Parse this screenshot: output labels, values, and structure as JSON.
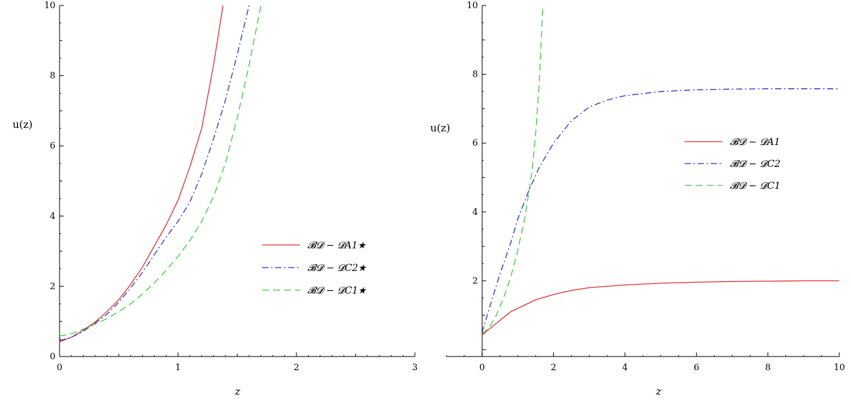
{
  "chart_data": [
    {
      "type": "line",
      "xlabel": "z",
      "ylabel": "u(z)",
      "xlim": [
        0,
        3
      ],
      "ylim": [
        0,
        10
      ],
      "xticks": [
        "0",
        "1",
        "2",
        "3"
      ],
      "yticks": [
        "0",
        "2",
        "4",
        "6",
        "8",
        "10"
      ],
      "legend_position": "lower-right",
      "grid": false,
      "series": [
        {
          "name": "𝓑𝓓 − 𝓓A1★",
          "color": "#e03030",
          "dash": "solid",
          "x": [
            0,
            0.1,
            0.2,
            0.3,
            0.4,
            0.5,
            0.6,
            0.7,
            0.8,
            0.9,
            1.0,
            1.1,
            1.2,
            1.3,
            1.38
          ],
          "y": [
            0.42,
            0.55,
            0.75,
            0.98,
            1.28,
            1.62,
            2.05,
            2.55,
            3.15,
            3.75,
            4.45,
            5.4,
            6.5,
            8.3,
            10.0
          ]
        },
        {
          "name": "𝓑𝓓 − 𝓓C2★",
          "color": "#3030c8",
          "dash": "dashdot",
          "x": [
            0,
            0.1,
            0.2,
            0.3,
            0.4,
            0.5,
            0.6,
            0.7,
            0.8,
            0.9,
            1.0,
            1.1,
            1.2,
            1.3,
            1.4,
            1.5,
            1.6
          ],
          "y": [
            0.45,
            0.55,
            0.72,
            0.95,
            1.2,
            1.55,
            1.95,
            2.4,
            2.9,
            3.4,
            3.85,
            4.4,
            5.2,
            6.2,
            7.3,
            8.6,
            10.0
          ]
        },
        {
          "name": "𝓑𝓓 − 𝓓C1★",
          "color": "#40c840",
          "dash": "dash",
          "x": [
            0,
            0.1,
            0.2,
            0.3,
            0.4,
            0.5,
            0.6,
            0.7,
            0.8,
            0.9,
            1.0,
            1.1,
            1.2,
            1.3,
            1.4,
            1.5,
            1.6,
            1.7
          ],
          "y": [
            0.58,
            0.65,
            0.78,
            0.92,
            1.08,
            1.28,
            1.5,
            1.78,
            2.1,
            2.45,
            2.85,
            3.3,
            3.85,
            4.55,
            5.5,
            6.8,
            8.3,
            10.0
          ]
        }
      ]
    },
    {
      "type": "line",
      "xlabel": "z",
      "ylabel": "u(z)",
      "xlim": [
        -1,
        10
      ],
      "ylim": [
        -0.2,
        10
      ],
      "xticks": [
        "0",
        "2",
        "4",
        "6",
        "8",
        "10"
      ],
      "yticks": [
        "2",
        "4",
        "6",
        "8",
        "10"
      ],
      "legend_position": "right",
      "grid": false,
      "series": [
        {
          "name": "𝓑𝓓 − 𝓓A1",
          "color": "#e03030",
          "dash": "solid",
          "x": [
            0,
            0.2,
            0.5,
            0.8,
            1.0,
            1.5,
            2.0,
            2.5,
            3.0,
            4.0,
            5.0,
            6.0,
            7.0,
            8.0,
            9.0,
            10.0
          ],
          "y": [
            0.42,
            0.6,
            0.85,
            1.1,
            1.2,
            1.45,
            1.6,
            1.72,
            1.8,
            1.88,
            1.93,
            1.96,
            1.98,
            1.99,
            2.0,
            2.0
          ]
        },
        {
          "name": "𝓑𝓓 − 𝓓C2",
          "color": "#3030c8",
          "dash": "dashdot",
          "x": [
            0,
            0.2,
            0.5,
            0.8,
            1.0,
            1.3,
            1.6,
            2.0,
            2.5,
            3.0,
            3.5,
            4.0,
            5.0,
            6.0,
            7.0,
            8.0,
            9.0,
            10.0
          ],
          "y": [
            0.5,
            1.2,
            2.2,
            3.1,
            3.8,
            4.6,
            5.3,
            6.0,
            6.65,
            7.05,
            7.25,
            7.38,
            7.5,
            7.55,
            7.57,
            7.58,
            7.58,
            7.58
          ]
        },
        {
          "name": "𝓑𝓓 − 𝓓C1",
          "color": "#40c840",
          "dash": "dash",
          "x": [
            0,
            0.2,
            0.4,
            0.6,
            0.8,
            1.0,
            1.2,
            1.4,
            1.5,
            1.6,
            1.7
          ],
          "y": [
            0.45,
            0.65,
            1.0,
            1.5,
            2.1,
            2.9,
            3.85,
            5.2,
            6.3,
            7.8,
            10.0
          ]
        }
      ]
    }
  ]
}
